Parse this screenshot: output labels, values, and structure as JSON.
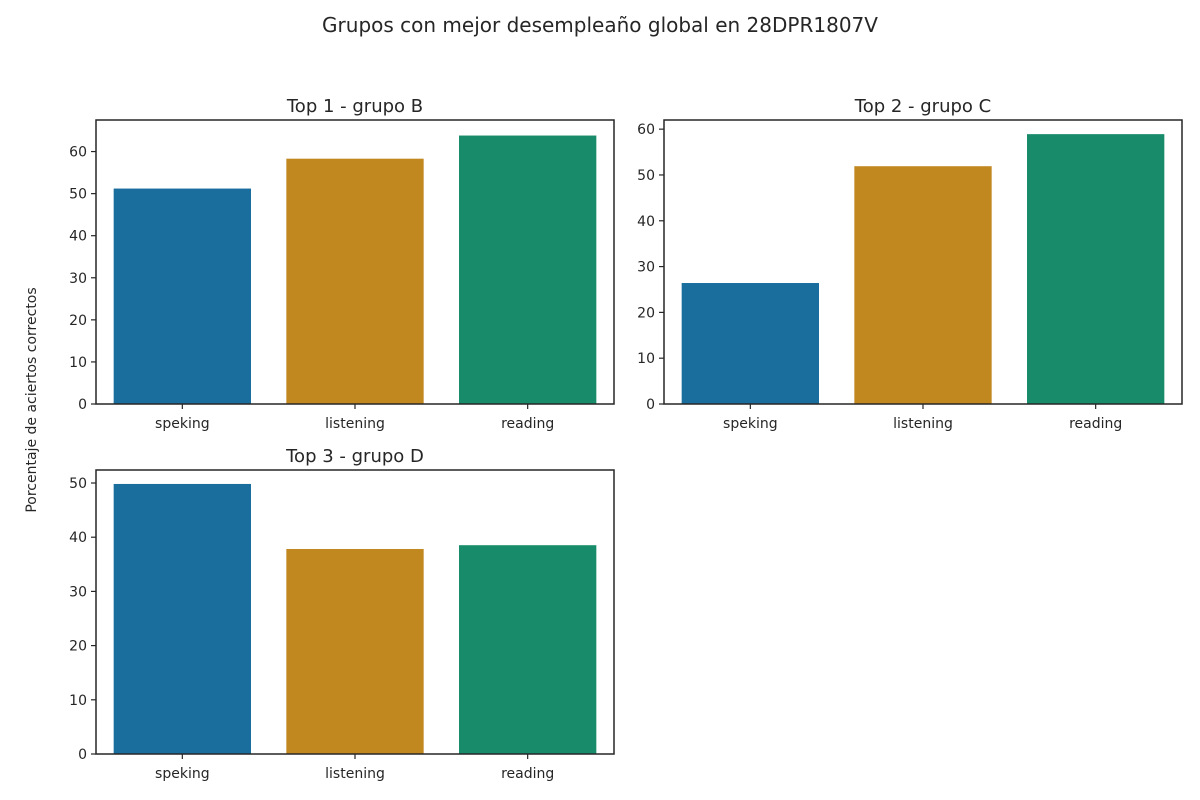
{
  "figure": {
    "suptitle": "Grupos con mejor desempleaño global en 28DPR1807V",
    "ylabel": "Porcentaje de aciertos correctos"
  },
  "palette": {
    "speking": "#1a6e9e",
    "listening": "#c28820",
    "reading": "#178b6a",
    "axis": "#262626",
    "background": "#ffffff"
  },
  "chart_data": [
    {
      "type": "bar",
      "title": "Top  1 - grupo B",
      "categories": [
        "speking",
        "listening",
        "reading"
      ],
      "values": [
        51.3,
        58.4,
        63.9
      ],
      "ylim": [
        0,
        67.5
      ],
      "yticks": [
        0,
        10,
        20,
        30,
        40,
        50,
        60
      ],
      "grid": false,
      "legend": false
    },
    {
      "type": "bar",
      "title": "Top  2 - grupo C",
      "categories": [
        "speking",
        "listening",
        "reading"
      ],
      "values": [
        26.5,
        52.0,
        59.0
      ],
      "ylim": [
        0,
        62.0
      ],
      "yticks": [
        0,
        10,
        20,
        30,
        40,
        50,
        60
      ],
      "grid": false,
      "legend": false
    },
    {
      "type": "bar",
      "title": "Top  3 - grupo D",
      "categories": [
        "speking",
        "listening",
        "reading"
      ],
      "values": [
        49.9,
        37.9,
        38.6
      ],
      "ylim": [
        0,
        52.4
      ],
      "yticks": [
        0,
        10,
        20,
        30,
        40,
        50
      ],
      "grid": false,
      "legend": false
    }
  ]
}
